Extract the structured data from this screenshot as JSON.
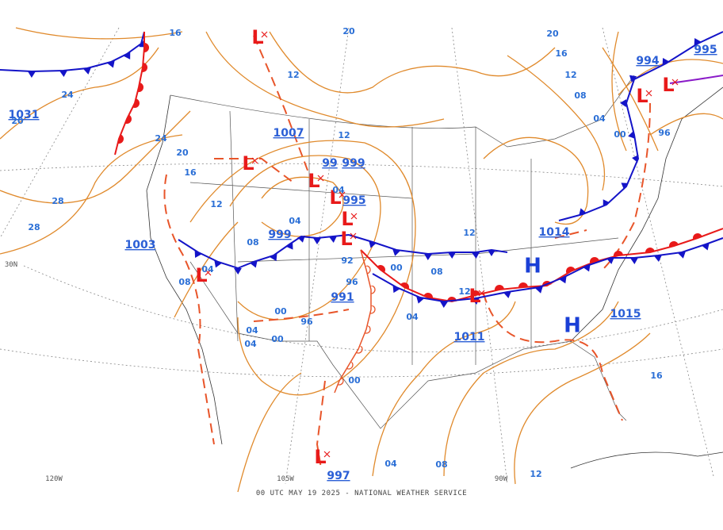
{
  "map": {
    "footer": "00 UTC MAY 19 2025 - NATIONAL WEATHER SERVICE",
    "coordinate_labels": [
      "120W",
      "105W",
      "90W",
      "30N"
    ],
    "high_centers": [
      "H",
      "H"
    ],
    "low_centers": [
      "L",
      "L",
      "L",
      "L",
      "L",
      "L",
      "L",
      "L",
      "L",
      "L",
      "L"
    ],
    "pressure_values": [
      "1031",
      "1007",
      "99",
      "999",
      "995",
      "999",
      "1003",
      "991",
      "997",
      "1011",
      "1014",
      "1015",
      "994",
      "995"
    ],
    "isobar_labels": [
      "16",
      "20",
      "12",
      "24",
      "20",
      "24",
      "20",
      "16",
      "12",
      "28",
      "28",
      "12",
      "04",
      "08",
      "04",
      "08",
      "92",
      "96",
      "00",
      "08",
      "12",
      "12",
      "00",
      "96",
      "04",
      "04",
      "00",
      "00",
      "04",
      "04",
      "08",
      "12",
      "16",
      "20",
      "16",
      "12",
      "08",
      "04",
      "00",
      "96",
      "04"
    ]
  }
}
